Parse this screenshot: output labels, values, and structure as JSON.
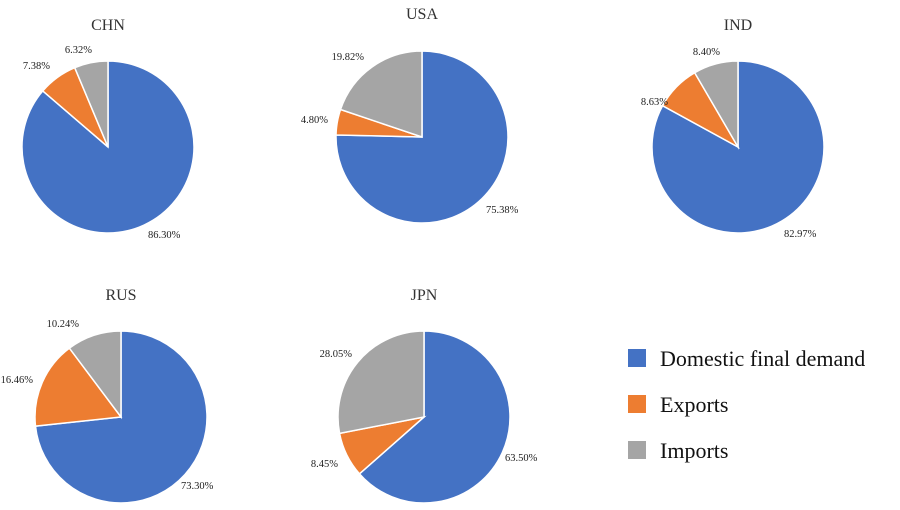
{
  "colors": {
    "domestic": "#4472C4",
    "exports": "#ED7D31",
    "imports": "#A5A5A5",
    "slice_border": "#ffffff"
  },
  "legend": [
    {
      "label": "Domestic final demand",
      "color": "#4472C4"
    },
    {
      "label": "Exports",
      "color": "#ED7D31"
    },
    {
      "label": "Imports",
      "color": "#A5A5A5"
    }
  ],
  "chart_data": [
    {
      "type": "pie",
      "title": "CHN",
      "categories": [
        "Domestic final demand",
        "Exports",
        "Imports"
      ],
      "values": [
        86.3,
        7.38,
        6.32
      ],
      "labels": [
        "86.30%",
        "7.38%",
        "6.32%"
      ]
    },
    {
      "type": "pie",
      "title": "USA",
      "categories": [
        "Domestic final demand",
        "Exports",
        "Imports"
      ],
      "values": [
        75.38,
        4.8,
        19.82
      ],
      "labels": [
        "75.38%",
        "4.80%",
        "19.82%"
      ]
    },
    {
      "type": "pie",
      "title": "IND",
      "categories": [
        "Domestic final demand",
        "Exports",
        "Imports"
      ],
      "values": [
        82.97,
        8.63,
        8.4
      ],
      "labels": [
        "82.97%",
        "8.63%",
        "8.40%"
      ]
    },
    {
      "type": "pie",
      "title": "RUS",
      "categories": [
        "Domestic final demand",
        "Exports",
        "Imports"
      ],
      "values": [
        73.3,
        16.46,
        10.24
      ],
      "labels": [
        "73.30%",
        "16.46%",
        "10.24%"
      ]
    },
    {
      "type": "pie",
      "title": "JPN",
      "categories": [
        "Domestic final demand",
        "Exports",
        "Imports"
      ],
      "values": [
        63.5,
        8.45,
        28.05
      ],
      "labels": [
        "63.50%",
        "8.45%",
        "28.05%"
      ]
    }
  ]
}
